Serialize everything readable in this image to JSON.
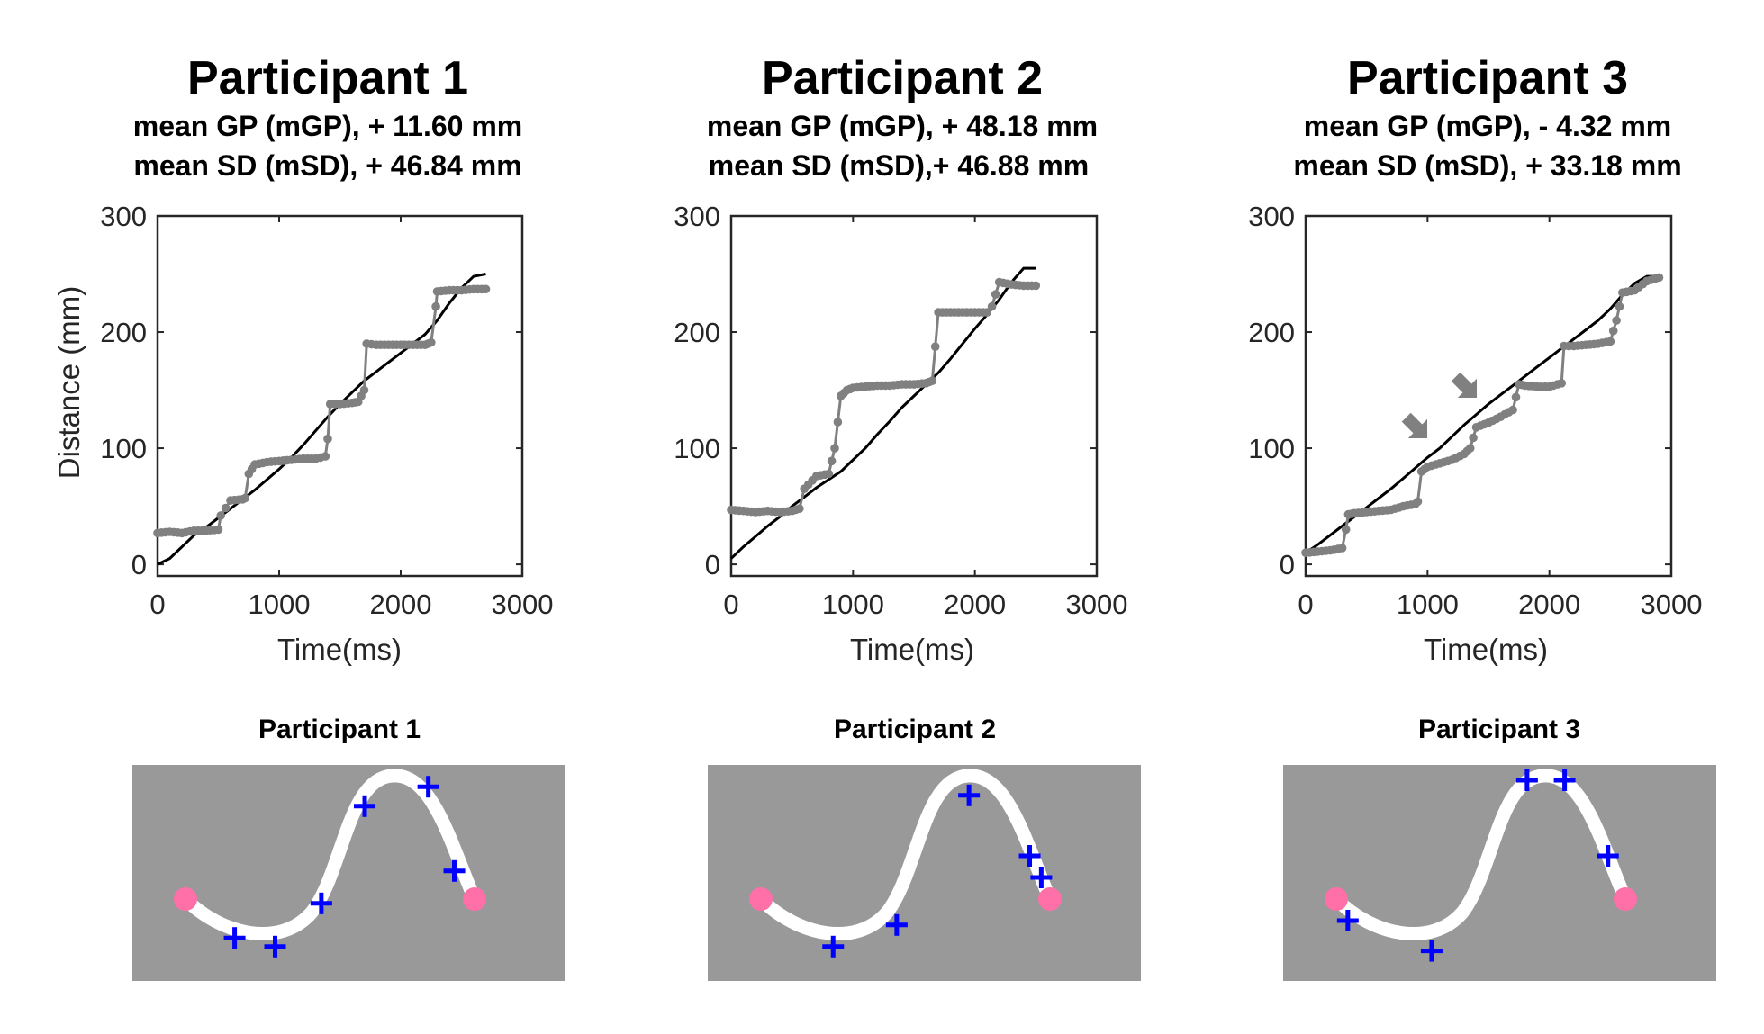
{
  "colors": {
    "reference": "#000000",
    "measured": "#808080",
    "panel_bg": "#999999",
    "path": "#ffffff",
    "cross": "#0000ff",
    "endpoint": "#ff6fa8",
    "arrow": "#808080"
  },
  "chart_data": [
    {
      "type": "line",
      "title": "Participant 1",
      "subtitle_lines": [
        "mean GP (mGP), + 11.60 mm",
        "mean SD (mSD), + 46.84 mm"
      ],
      "xlabel": "Time(ms)",
      "ylabel": "Distance (mm)",
      "xlim": [
        0,
        3000
      ],
      "ylim": [
        -10,
        300
      ],
      "xticks": [
        0,
        1000,
        2000,
        3000
      ],
      "yticks": [
        0,
        100,
        200,
        300
      ],
      "series": [
        {
          "name": "reference",
          "x": [
            0,
            100,
            200,
            300,
            400,
            500,
            600,
            700,
            800,
            900,
            1000,
            1100,
            1200,
            1300,
            1400,
            1500,
            1600,
            1700,
            1800,
            1900,
            2000,
            2100,
            2200,
            2300,
            2400,
            2500,
            2600,
            2700
          ],
          "y": [
            0,
            5,
            15,
            25,
            32,
            40,
            48,
            56,
            64,
            73,
            82,
            92,
            103,
            115,
            127,
            138,
            148,
            158,
            166,
            174,
            182,
            190,
            198,
            210,
            225,
            238,
            248,
            250
          ]
        },
        {
          "name": "measured",
          "x": [
            0,
            100,
            200,
            300,
            400,
            500,
            520,
            600,
            700,
            720,
            750,
            800,
            900,
            1000,
            1100,
            1200,
            1300,
            1380,
            1400,
            1420,
            1500,
            1600,
            1650,
            1700,
            1720,
            1800,
            1900,
            2000,
            2100,
            2200,
            2250,
            2290,
            2300,
            2400,
            2500,
            2600,
            2700
          ],
          "y": [
            27,
            28,
            27,
            29,
            29,
            30,
            42,
            55,
            56,
            57,
            78,
            86,
            88,
            89,
            90,
            91,
            91,
            93,
            108,
            138,
            138,
            139,
            140,
            150,
            190,
            189,
            189,
            189,
            189,
            189,
            191,
            222,
            235,
            236,
            236,
            237,
            237
          ]
        }
      ],
      "trajectory": {
        "title": "Participant 1",
        "start": [
          0.0,
          0.0
        ],
        "end": [
          0.0,
          0.0
        ],
        "crosses": [
          [
            0.17,
            -0.18
          ],
          [
            0.31,
            -0.22
          ],
          [
            0.47,
            -0.02
          ],
          [
            0.62,
            0.43
          ],
          [
            0.84,
            0.52
          ],
          [
            0.93,
            0.13
          ]
        ]
      }
    },
    {
      "type": "line",
      "title": "Participant 2",
      "subtitle_lines": [
        "mean GP (mGP), + 48.18 mm",
        "mean SD (mSD),+  46.88 mm"
      ],
      "xlabel": "Time(ms)",
      "ylabel": "",
      "xlim": [
        0,
        3000
      ],
      "ylim": [
        -10,
        300
      ],
      "xticks": [
        0,
        1000,
        2000,
        3000
      ],
      "yticks": [
        0,
        100,
        200,
        300
      ],
      "series": [
        {
          "name": "reference",
          "x": [
            0,
            100,
            200,
            300,
            400,
            500,
            600,
            700,
            800,
            900,
            1000,
            1100,
            1200,
            1300,
            1400,
            1500,
            1600,
            1700,
            1800,
            1900,
            2000,
            2100,
            2200,
            2300,
            2400,
            2500
          ],
          "y": [
            5,
            15,
            24,
            33,
            41,
            50,
            58,
            66,
            73,
            80,
            90,
            100,
            112,
            123,
            135,
            145,
            155,
            165,
            177,
            190,
            203,
            215,
            228,
            243,
            255,
            255
          ]
        },
        {
          "name": "measured",
          "x": [
            0,
            100,
            200,
            300,
            400,
            500,
            560,
            600,
            700,
            800,
            850,
            900,
            950,
            1000,
            1100,
            1200,
            1300,
            1400,
            1500,
            1600,
            1650,
            1700,
            1800,
            1900,
            2000,
            2100,
            2140,
            2200,
            2300,
            2400,
            2500
          ],
          "y": [
            47,
            46,
            45,
            46,
            45,
            46,
            48,
            65,
            76,
            78,
            100,
            145,
            150,
            152,
            153,
            154,
            154,
            155,
            155,
            156,
            158,
            217,
            217,
            217,
            217,
            217,
            222,
            243,
            241,
            240,
            240
          ]
        }
      ],
      "trajectory": {
        "title": "Participant 2",
        "start": [
          0.0,
          0.0
        ],
        "end": [
          0.0,
          0.0
        ],
        "crosses": [
          [
            0.25,
            -0.22
          ],
          [
            0.47,
            -0.12
          ],
          [
            0.72,
            0.48
          ],
          [
            0.93,
            0.2
          ],
          [
            0.97,
            0.1
          ]
        ]
      }
    },
    {
      "type": "line",
      "title": "Participant 3",
      "subtitle_lines": [
        "mean GP (mGP), - 4.32 mm",
        "mean SD (mSD), + 33.18 mm"
      ],
      "xlabel": "Time(ms)",
      "ylabel": "",
      "xlim": [
        0,
        3000
      ],
      "ylim": [
        -10,
        300
      ],
      "xticks": [
        0,
        1000,
        2000,
        3000
      ],
      "yticks": [
        0,
        100,
        200,
        300
      ],
      "series": [
        {
          "name": "reference",
          "x": [
            0,
            100,
            200,
            300,
            400,
            500,
            600,
            700,
            800,
            900,
            1000,
            1100,
            1200,
            1300,
            1400,
            1500,
            1600,
            1700,
            1800,
            1900,
            2000,
            2100,
            2200,
            2300,
            2400,
            2500,
            2600,
            2700,
            2800,
            2900
          ],
          "y": [
            10,
            17,
            25,
            33,
            41,
            49,
            57,
            65,
            74,
            83,
            92,
            100,
            110,
            120,
            129,
            138,
            146,
            154,
            162,
            170,
            178,
            186,
            194,
            202,
            210,
            220,
            232,
            242,
            248,
            248
          ]
        },
        {
          "name": "measured",
          "x": [
            0,
            100,
            200,
            300,
            330,
            350,
            400,
            500,
            600,
            700,
            800,
            900,
            920,
            950,
            1000,
            1100,
            1200,
            1300,
            1350,
            1400,
            1500,
            1600,
            1700,
            1750,
            1800,
            1900,
            2000,
            2100,
            2120,
            2200,
            2300,
            2400,
            2500,
            2550,
            2600,
            2700,
            2800,
            2900
          ],
          "y": [
            10,
            11,
            12,
            14,
            30,
            43,
            44,
            45,
            46,
            47,
            50,
            52,
            54,
            80,
            84,
            87,
            90,
            95,
            100,
            118,
            122,
            127,
            133,
            155,
            154,
            153,
            153,
            156,
            188,
            188,
            189,
            190,
            192,
            210,
            234,
            236,
            244,
            247
          ]
        }
      ],
      "trajectory": {
        "title": "Participant 3",
        "start": [
          0.0,
          0.0
        ],
        "end": [
          0.0,
          0.0
        ],
        "crosses": [
          [
            0.04,
            -0.1
          ],
          [
            0.33,
            -0.24
          ],
          [
            0.66,
            0.55
          ],
          [
            0.79,
            0.55
          ],
          [
            0.94,
            0.2
          ]
        ]
      }
    }
  ]
}
